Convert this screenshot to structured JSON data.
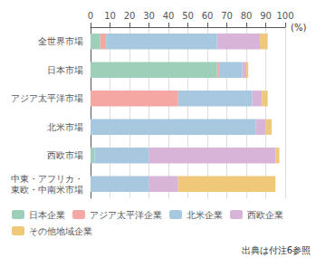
{
  "chart_data": {
    "type": "bar",
    "orientation": "horizontal",
    "stacked": true,
    "categories": [
      "全世界市場",
      "日本市場",
      "アジア太平洋市場",
      "北米市場",
      "西欧市場",
      "中東・アフリカ・\n東欧・中南米市場"
    ],
    "series": [
      {
        "name": "日本企業",
        "color": "#9ecfb8",
        "values": [
          5,
          65,
          0,
          0,
          2,
          0
        ]
      },
      {
        "name": "アジア太平洋企業",
        "color": "#f4a7a3",
        "values": [
          3,
          1,
          45,
          0,
          0,
          0
        ]
      },
      {
        "name": "北米企業",
        "color": "#a8c8e0",
        "values": [
          57,
          12,
          38,
          85,
          28,
          30
        ]
      },
      {
        "name": "西欧企業",
        "color": "#d8b4d8",
        "values": [
          22,
          2,
          5,
          5,
          65,
          15
        ]
      },
      {
        "name": "その他地域企業",
        "color": "#f0c87a",
        "values": [
          4,
          1,
          3,
          3,
          2,
          50
        ]
      }
    ],
    "xlabel": "(%)",
    "xlim": [
      0,
      100
    ],
    "xticks": [
      0,
      10,
      20,
      30,
      40,
      50,
      60,
      70,
      80,
      90,
      100
    ],
    "grid": true,
    "legend": "bottom",
    "annotations": [
      "出典は付注6参照"
    ]
  }
}
